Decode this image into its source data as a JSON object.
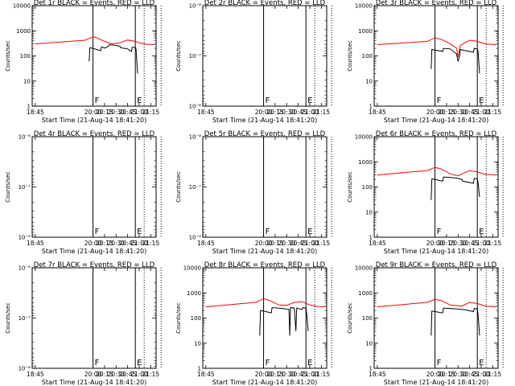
{
  "chart_data": [
    {
      "type": "line",
      "title": "Det 1r BLACK = Events, RED = LLD",
      "xlabel": "Start Time (21-Aug-14 18:41:20)",
      "ylabel": "Counts/sec",
      "y_scale": "log",
      "ylim": [
        1,
        10000
      ],
      "ytick_labels": [
        "1",
        "10",
        "100",
        "1000",
        "10000"
      ],
      "xlim": [
        "18:41",
        "21:22"
      ],
      "xtick_labels": [
        "18:45",
        "20:00",
        "20:15",
        "20:30",
        "20:45",
        "21:00",
        "21:15"
      ],
      "markers": {
        "F": "20:00",
        "E": "20:55"
      },
      "series": [
        {
          "name": "Events",
          "color": "#000000",
          "points": [
            [
              "18:45",
              null
            ],
            [
              "19:55",
              60
            ],
            [
              "19:56",
              210
            ],
            [
              "20:00",
              200
            ],
            [
              "20:10",
              160
            ],
            [
              "20:11",
              230
            ],
            [
              "20:15",
              205
            ],
            [
              "20:20",
              240
            ],
            [
              "20:21",
              280
            ],
            [
              "20:30",
              260
            ],
            [
              "20:35",
              240
            ],
            [
              "20:36",
              210
            ],
            [
              "20:45",
              190
            ],
            [
              "20:50",
              150
            ],
            [
              "20:51",
              220
            ],
            [
              "20:55",
              215
            ],
            [
              "20:56",
              180
            ],
            [
              "20:58",
              20
            ]
          ]
        },
        {
          "name": "LLD",
          "color": "#ff0000",
          "points": [
            [
              "18:45",
              300
            ],
            [
              "19:50",
              420
            ],
            [
              "20:00",
              580
            ],
            [
              "20:05",
              520
            ],
            [
              "20:15",
              380
            ],
            [
              "20:25",
              300
            ],
            [
              "20:35",
              330
            ],
            [
              "20:45",
              430
            ],
            [
              "20:55",
              380
            ],
            [
              "21:00",
              330
            ],
            [
              "21:10",
              290
            ],
            [
              "21:20",
              280
            ]
          ]
        }
      ]
    },
    {
      "type": "line",
      "title": "Det 2r BLACK = Events, RED = LLD",
      "xlabel": "Start Time (21-Aug-14 18:41:20)",
      "ylabel": "Counts/sec",
      "y_scale": "log",
      "ylim": [
        1e-06,
        1e-08
      ],
      "ytick_labels": [
        "10⁻⁸",
        "10⁻⁷",
        "10⁻⁶"
      ],
      "xlim": [
        "18:41",
        "21:22"
      ],
      "xtick_labels": [
        "18:45",
        "20:00",
        "20:15",
        "20:30",
        "20:45",
        "21:00",
        "21:15"
      ],
      "markers": {
        "F": "20:00",
        "E": "20:55"
      },
      "series": []
    },
    {
      "type": "line",
      "title": "Det 3r BLACK = Events, RED = LLD",
      "xlabel": "Start Time (21-Aug-14 18:41:20)",
      "ylabel": "Counts/sec",
      "y_scale": "log",
      "ylim": [
        1,
        10000
      ],
      "ytick_labels": [
        "1",
        "10",
        "100",
        "1000",
        "10000"
      ],
      "xlim": [
        "18:41",
        "21:22"
      ],
      "xtick_labels": [
        "18:45",
        "20:00",
        "20:15",
        "20:30",
        "20:45",
        "21:00",
        "21:15"
      ],
      "markers": {
        "F": "20:00",
        "E": "20:55"
      },
      "series": [
        {
          "name": "Events",
          "color": "#000000",
          "points": [
            [
              "19:55",
              30
            ],
            [
              "19:56",
              180
            ],
            [
              "20:00",
              170
            ],
            [
              "20:10",
              150
            ],
            [
              "20:11",
              200
            ],
            [
              "20:20",
              190
            ],
            [
              "20:28",
              120
            ],
            [
              "20:30",
              60
            ],
            [
              "20:32",
              100
            ],
            [
              "20:33",
              180
            ],
            [
              "20:40",
              160
            ],
            [
              "20:50",
              140
            ],
            [
              "20:51",
              200
            ],
            [
              "20:55",
              190
            ],
            [
              "20:56",
              150
            ],
            [
              "20:58",
              20
            ]
          ]
        },
        {
          "name": "LLD",
          "color": "#ff0000",
          "points": [
            [
              "18:45",
              280
            ],
            [
              "19:50",
              380
            ],
            [
              "20:00",
              520
            ],
            [
              "20:08",
              460
            ],
            [
              "20:20",
              300
            ],
            [
              "20:28",
              200
            ],
            [
              "20:30",
              90
            ],
            [
              "20:33",
              260
            ],
            [
              "20:45",
              420
            ],
            [
              "20:55",
              380
            ],
            [
              "21:05",
              300
            ],
            [
              "21:20",
              280
            ]
          ]
        }
      ]
    },
    {
      "type": "line",
      "title": "Det 4r BLACK = Events, RED = LLD",
      "xlabel": "Start Time (21-Aug-14 18:41:20)",
      "ylabel": "Counts/sec",
      "y_scale": "log",
      "ylim": [
        1e-06,
        1e-08
      ],
      "ytick_labels": [
        "10⁻⁸",
        "10⁻⁷",
        "10⁻⁶"
      ],
      "xlim": [
        "18:41",
        "21:22"
      ],
      "xtick_labels": [
        "18:45",
        "20:00",
        "20:15",
        "20:30",
        "20:45",
        "21:00",
        "21:15"
      ],
      "markers": {
        "F": "20:00",
        "E": "20:55"
      },
      "series": []
    },
    {
      "type": "line",
      "title": "Det 5r BLACK = Events, RED = LLD",
      "xlabel": "Start Time (21-Aug-14 18:41:20)",
      "ylabel": "Counts/sec",
      "y_scale": "log",
      "ylim": [
        1e-06,
        1e-08
      ],
      "ytick_labels": [
        "10⁻⁸",
        "10⁻⁷",
        "10⁻⁶"
      ],
      "xlim": [
        "18:41",
        "21:22"
      ],
      "xtick_labels": [
        "18:45",
        "20:00",
        "20:15",
        "20:30",
        "20:45",
        "21:00",
        "21:15"
      ],
      "markers": {
        "F": "20:00",
        "E": "20:55"
      },
      "series": []
    },
    {
      "type": "line",
      "title": "Det 6r BLACK = Events, RED = LLD",
      "xlabel": "Start Time (21-Aug-14 18:41:20)",
      "ylabel": "Counts/sec",
      "y_scale": "log",
      "ylim": [
        1,
        10000
      ],
      "ytick_labels": [
        "1",
        "10",
        "100",
        "1000",
        "10000"
      ],
      "xlim": [
        "18:41",
        "21:22"
      ],
      "xtick_labels": [
        "18:45",
        "20:00",
        "20:15",
        "20:30",
        "20:45",
        "21:00",
        "21:15"
      ],
      "markers": {
        "F": "20:00",
        "E": "20:55"
      },
      "series": [
        {
          "name": "Events",
          "color": "#000000",
          "points": [
            [
              "19:55",
              30
            ],
            [
              "19:56",
              210
            ],
            [
              "20:00",
              200
            ],
            [
              "20:10",
              170
            ],
            [
              "20:11",
              250
            ],
            [
              "20:20",
              240
            ],
            [
              "20:30",
              220
            ],
            [
              "20:35",
              200
            ],
            [
              "20:36",
              170
            ],
            [
              "20:50",
              140
            ],
            [
              "20:51",
              220
            ],
            [
              "20:55",
              210
            ],
            [
              "20:56",
              150
            ],
            [
              "20:58",
              40
            ]
          ]
        },
        {
          "name": "LLD",
          "color": "#ff0000",
          "points": [
            [
              "18:45",
              300
            ],
            [
              "19:50",
              450
            ],
            [
              "20:00",
              600
            ],
            [
              "20:08",
              520
            ],
            [
              "20:20",
              330
            ],
            [
              "20:30",
              280
            ],
            [
              "20:45",
              450
            ],
            [
              "20:55",
              400
            ],
            [
              "21:05",
              320
            ],
            [
              "21:20",
              300
            ]
          ]
        }
      ]
    },
    {
      "type": "line",
      "title": "Det 7r BLACK = Events, RED = LLD",
      "xlabel": "Start Time (21-Aug-14 18:41:20)",
      "ylabel": "Counts/sec",
      "y_scale": "log",
      "ylim": [
        1e-06,
        1e-08
      ],
      "ytick_labels": [
        "10⁻⁸",
        "10⁻⁷",
        "10⁻⁶"
      ],
      "xlim": [
        "18:41",
        "21:22"
      ],
      "xtick_labels": [
        "18:45",
        "20:00",
        "20:15",
        "20:30",
        "20:45",
        "21:00",
        "21:15"
      ],
      "markers": {
        "F": "20:00",
        "E": "20:55"
      },
      "series": []
    },
    {
      "type": "line",
      "title": "Det 8r BLACK = Events, RED = LLD",
      "xlabel": "Start Time (21-Aug-14 18:41:20)",
      "ylabel": "Counts/sec",
      "y_scale": "log",
      "ylim": [
        1,
        10000
      ],
      "ytick_labels": [
        "1",
        "10",
        "100",
        "1000",
        "10000"
      ],
      "xlim": [
        "18:41",
        "21:22"
      ],
      "xtick_labels": [
        "18:45",
        "20:00",
        "20:15",
        "20:30",
        "20:45",
        "21:00",
        "21:15"
      ],
      "markers": {
        "F": "20:00",
        "E": "20:55"
      },
      "series": [
        {
          "name": "Events",
          "color": "#000000",
          "points": [
            [
              "19:55",
              20
            ],
            [
              "19:56",
              200
            ],
            [
              "20:00",
              190
            ],
            [
              "20:10",
              160
            ],
            [
              "20:11",
              260
            ],
            [
              "20:25",
              240
            ],
            [
              "20:33",
              220
            ],
            [
              "20:34",
              20
            ],
            [
              "20:35",
              260
            ],
            [
              "20:40",
              250
            ],
            [
              "20:42",
              30
            ],
            [
              "20:43",
              250
            ],
            [
              "20:50",
              220
            ],
            [
              "20:51",
              260
            ],
            [
              "20:55",
              250
            ],
            [
              "20:56",
              160
            ],
            [
              "20:58",
              30
            ]
          ]
        },
        {
          "name": "LLD",
          "color": "#ff0000",
          "points": [
            [
              "18:45",
              280
            ],
            [
              "19:50",
              420
            ],
            [
              "20:00",
              580
            ],
            [
              "20:08",
              500
            ],
            [
              "20:20",
              330
            ],
            [
              "20:30",
              320
            ],
            [
              "20:40",
              420
            ],
            [
              "20:50",
              450
            ],
            [
              "21:00",
              330
            ],
            [
              "21:10",
              290
            ],
            [
              "21:20",
              280
            ]
          ]
        }
      ]
    },
    {
      "type": "line",
      "title": "Det 9r BLACK = Events, RED = LLD",
      "xlabel": "Start Time (21-Aug-14 18:41:20)",
      "ylabel": "Counts/sec",
      "y_scale": "log",
      "ylim": [
        1,
        10000
      ],
      "ytick_labels": [
        "1",
        "10",
        "100",
        "1000",
        "10000"
      ],
      "xlim": [
        "18:41",
        "21:22"
      ],
      "xtick_labels": [
        "18:45",
        "20:00",
        "20:15",
        "20:30",
        "20:45",
        "21:00",
        "21:15"
      ],
      "markers": {
        "F": "20:00",
        "E": "20:55"
      },
      "series": [
        {
          "name": "Events",
          "color": "#000000",
          "points": [
            [
              "19:55",
              20
            ],
            [
              "19:56",
              190
            ],
            [
              "20:00",
              180
            ],
            [
              "20:10",
              160
            ],
            [
              "20:11",
              250
            ],
            [
              "20:30",
              230
            ],
            [
              "20:40",
              210
            ],
            [
              "20:50",
              180
            ],
            [
              "20:51",
              240
            ],
            [
              "20:55",
              230
            ],
            [
              "20:56",
              140
            ],
            [
              "20:58",
              20
            ]
          ]
        },
        {
          "name": "LLD",
          "color": "#ff0000",
          "points": [
            [
              "18:45",
              280
            ],
            [
              "19:50",
              420
            ],
            [
              "20:00",
              560
            ],
            [
              "20:08",
              500
            ],
            [
              "20:20",
              330
            ],
            [
              "20:35",
              300
            ],
            [
              "20:45",
              420
            ],
            [
              "20:55",
              380
            ],
            [
              "21:05",
              300
            ],
            [
              "21:20",
              280
            ]
          ]
        }
      ]
    }
  ]
}
